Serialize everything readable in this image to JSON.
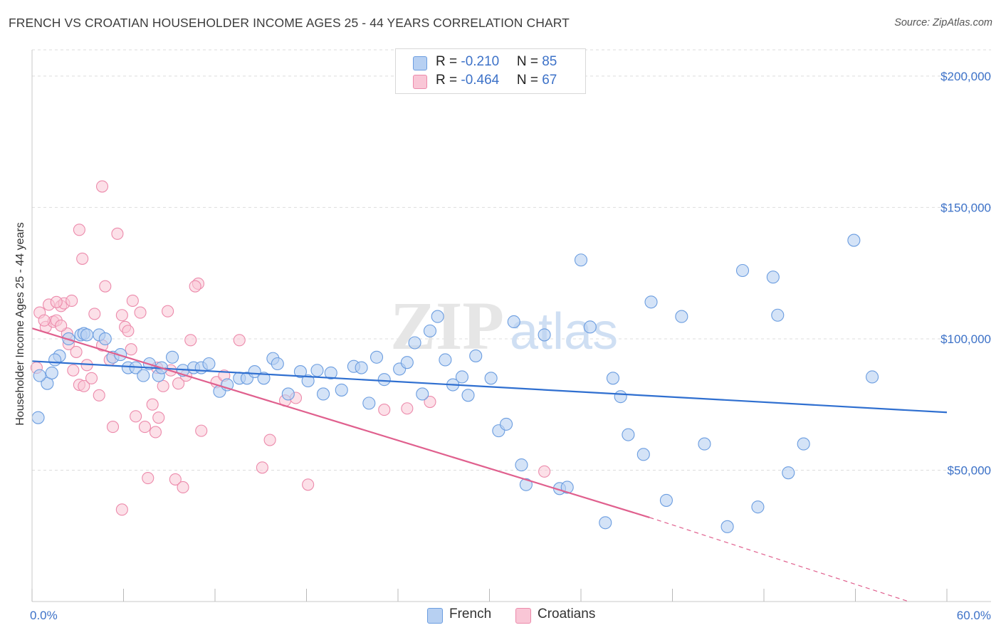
{
  "header": {
    "title": "FRENCH VS CROATIAN HOUSEHOLDER INCOME AGES 25 - 44 YEARS CORRELATION CHART",
    "source": "Source: ZipAtlas.com"
  },
  "watermark": {
    "part1": "ZIP",
    "part2": "atlas"
  },
  "legend": {
    "rows": [
      {
        "r_label": "R = ",
        "r_value": "-0.210",
        "n_label": "N = ",
        "n_value": "85"
      },
      {
        "r_label": "R = ",
        "r_value": "-0.464",
        "n_label": "N = ",
        "n_value": "67"
      }
    ]
  },
  "bottom_legend": {
    "french": "French",
    "croatians": "Croatians"
  },
  "colors": {
    "french_fill": "#b7d0f2",
    "french_stroke": "#6b9de0",
    "french_line": "#2f6fd0",
    "croatian_fill": "#f9c6d6",
    "croatian_stroke": "#ec8aab",
    "croatian_line": "#e0608e",
    "axis_text": "#3d72c8",
    "grid": "#dddddd"
  },
  "chart_data": {
    "type": "scatter",
    "title": "FRENCH VS CROATIAN HOUSEHOLDER INCOME AGES 25 - 44 YEARS CORRELATION CHART",
    "xlabel": "",
    "ylabel": "Householder Income Ages 25 - 44 years",
    "xlim": [
      0,
      60
    ],
    "ylim": [
      0,
      210000
    ],
    "x_tick_labels": [
      "0.0%",
      "60.0%"
    ],
    "y_ticks": [
      50000,
      100000,
      150000,
      200000
    ],
    "y_tick_labels": [
      "$50,000",
      "$100,000",
      "$150,000",
      "$200,000"
    ],
    "grid": true,
    "legend_position": "top-center",
    "series": [
      {
        "name": "French",
        "R": -0.21,
        "N": 85,
        "trend": {
          "x": [
            0,
            60
          ],
          "y": [
            91500,
            72000
          ]
        },
        "points": [
          [
            0.4,
            70000
          ],
          [
            1.0,
            83000
          ],
          [
            1.3,
            87000
          ],
          [
            1.8,
            93500
          ],
          [
            2.4,
            100000
          ],
          [
            3.2,
            101500
          ],
          [
            3.4,
            102000
          ],
          [
            3.6,
            101500
          ],
          [
            4.4,
            101500
          ],
          [
            4.8,
            100000
          ],
          [
            5.3,
            93000
          ],
          [
            5.8,
            94000
          ],
          [
            6.3,
            89000
          ],
          [
            6.8,
            89000
          ],
          [
            7.3,
            86000
          ],
          [
            7.7,
            90500
          ],
          [
            8.3,
            86000
          ],
          [
            8.5,
            89000
          ],
          [
            9.2,
            93000
          ],
          [
            9.9,
            88000
          ],
          [
            10.6,
            89000
          ],
          [
            11.1,
            89000
          ],
          [
            11.6,
            90500
          ],
          [
            12.3,
            80000
          ],
          [
            12.8,
            82500
          ],
          [
            13.6,
            85000
          ],
          [
            14.1,
            85000
          ],
          [
            14.6,
            87500
          ],
          [
            15.2,
            85000
          ],
          [
            15.8,
            92500
          ],
          [
            16.1,
            90500
          ],
          [
            16.8,
            79000
          ],
          [
            17.6,
            87500
          ],
          [
            18.1,
            84000
          ],
          [
            18.7,
            88000
          ],
          [
            19.1,
            79000
          ],
          [
            19.6,
            87000
          ],
          [
            20.3,
            80500
          ],
          [
            21.1,
            89500
          ],
          [
            21.6,
            89000
          ],
          [
            22.1,
            75500
          ],
          [
            22.6,
            93000
          ],
          [
            23.1,
            84500
          ],
          [
            24.1,
            88500
          ],
          [
            24.6,
            91000
          ],
          [
            25.1,
            98500
          ],
          [
            25.6,
            79000
          ],
          [
            26.1,
            103000
          ],
          [
            26.6,
            108500
          ],
          [
            27.1,
            92000
          ],
          [
            27.6,
            82500
          ],
          [
            28.2,
            85500
          ],
          [
            28.6,
            78500
          ],
          [
            29.1,
            93500
          ],
          [
            30.1,
            85000
          ],
          [
            30.6,
            65000
          ],
          [
            31.1,
            67500
          ],
          [
            31.6,
            106500
          ],
          [
            32.1,
            52000
          ],
          [
            32.4,
            44500
          ],
          [
            33.6,
            101500
          ],
          [
            34.6,
            43000
          ],
          [
            35.1,
            43500
          ],
          [
            36.0,
            130000
          ],
          [
            36.6,
            104500
          ],
          [
            37.6,
            30000
          ],
          [
            38.1,
            85000
          ],
          [
            38.6,
            78000
          ],
          [
            39.1,
            63500
          ],
          [
            40.1,
            56000
          ],
          [
            40.6,
            114000
          ],
          [
            41.6,
            38500
          ],
          [
            42.6,
            108500
          ],
          [
            44.1,
            60000
          ],
          [
            45.6,
            28500
          ],
          [
            46.6,
            126000
          ],
          [
            47.6,
            36000
          ],
          [
            48.6,
            123500
          ],
          [
            48.9,
            109000
          ],
          [
            49.6,
            49000
          ],
          [
            50.6,
            60000
          ],
          [
            53.9,
            137500
          ],
          [
            55.1,
            85500
          ],
          [
            0.5,
            86000
          ],
          [
            1.5,
            92000
          ]
        ]
      },
      {
        "name": "Croatians",
        "R": -0.464,
        "N": 67,
        "trend": {
          "x": [
            0,
            40.5
          ],
          "y": [
            104000,
            32000
          ]
        },
        "trend_dashed": {
          "x": [
            40.5,
            57.5
          ],
          "y": [
            32000,
            0
          ]
        },
        "points": [
          [
            0.3,
            89000
          ],
          [
            0.5,
            110000
          ],
          [
            0.9,
            104500
          ],
          [
            1.1,
            113000
          ],
          [
            1.4,
            106500
          ],
          [
            1.6,
            107000
          ],
          [
            1.9,
            112500
          ],
          [
            2.1,
            113500
          ],
          [
            2.4,
            98000
          ],
          [
            2.6,
            114500
          ],
          [
            2.9,
            95000
          ],
          [
            3.1,
            82500
          ],
          [
            3.4,
            82000
          ],
          [
            3.6,
            90000
          ],
          [
            3.9,
            85000
          ],
          [
            4.1,
            109500
          ],
          [
            4.4,
            78500
          ],
          [
            4.6,
            97500
          ],
          [
            4.8,
            120000
          ],
          [
            5.1,
            92000
          ],
          [
            5.3,
            66500
          ],
          [
            5.6,
            140000
          ],
          [
            5.9,
            109000
          ],
          [
            6.1,
            104500
          ],
          [
            6.3,
            103000
          ],
          [
            6.6,
            114500
          ],
          [
            6.8,
            70500
          ],
          [
            7.1,
            110000
          ],
          [
            7.4,
            66500
          ],
          [
            7.6,
            47000
          ],
          [
            7.9,
            75000
          ],
          [
            8.1,
            64500
          ],
          [
            8.3,
            70000
          ],
          [
            8.6,
            82000
          ],
          [
            8.9,
            110500
          ],
          [
            9.1,
            88000
          ],
          [
            9.4,
            46500
          ],
          [
            9.6,
            83000
          ],
          [
            9.9,
            43500
          ],
          [
            10.1,
            86000
          ],
          [
            10.4,
            99500
          ],
          [
            10.9,
            121000
          ],
          [
            11.1,
            65000
          ],
          [
            12.1,
            83500
          ],
          [
            12.6,
            86000
          ],
          [
            13.6,
            99500
          ],
          [
            15.1,
            51000
          ],
          [
            15.6,
            61500
          ],
          [
            16.6,
            76500
          ],
          [
            17.3,
            77500
          ],
          [
            18.1,
            44500
          ],
          [
            23.1,
            73000
          ],
          [
            24.6,
            73500
          ],
          [
            26.1,
            76000
          ],
          [
            33.6,
            49500
          ],
          [
            1.6,
            114000
          ],
          [
            2.3,
            102000
          ],
          [
            3.1,
            141500
          ],
          [
            4.6,
            158000
          ],
          [
            3.3,
            130500
          ],
          [
            1.9,
            105000
          ],
          [
            0.8,
            107000
          ],
          [
            5.9,
            35000
          ],
          [
            8.2,
            89000
          ],
          [
            10.7,
            120000
          ],
          [
            2.7,
            88000
          ],
          [
            6.5,
            96000
          ]
        ]
      }
    ]
  }
}
